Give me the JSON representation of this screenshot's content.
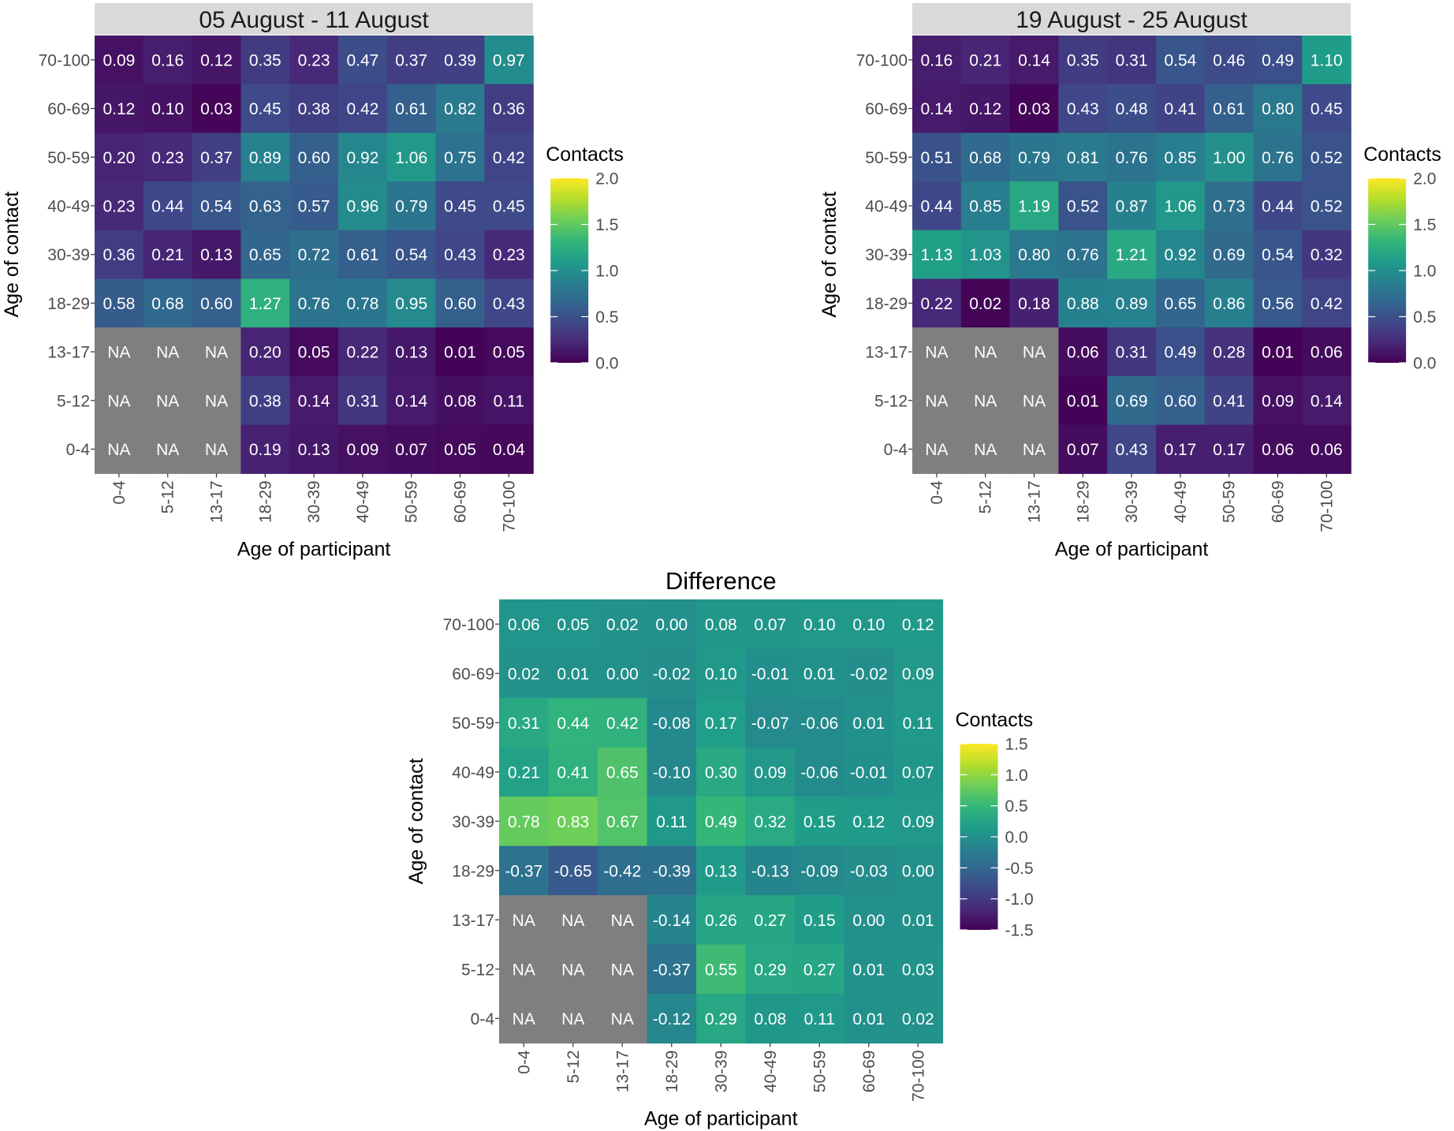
{
  "chart_data": [
    {
      "type": "heatmap",
      "title": "05 August - 11 August",
      "title_style": "strip",
      "xlabel": "Age of participant",
      "ylabel": "Age of contact",
      "x_categories": [
        "0-4",
        "5-12",
        "13-17",
        "18-29",
        "30-39",
        "40-49",
        "50-59",
        "60-69",
        "70-100"
      ],
      "y_categories": [
        "70-100",
        "60-69",
        "50-59",
        "40-49",
        "30-39",
        "18-29",
        "13-17",
        "5-12",
        "0-4"
      ],
      "values": [
        [
          0.09,
          0.16,
          0.12,
          0.35,
          0.23,
          0.47,
          0.37,
          0.39,
          0.97
        ],
        [
          0.12,
          0.1,
          0.03,
          0.45,
          0.38,
          0.42,
          0.61,
          0.82,
          0.36
        ],
        [
          0.2,
          0.23,
          0.37,
          0.89,
          0.6,
          0.92,
          1.06,
          0.75,
          0.42
        ],
        [
          0.23,
          0.44,
          0.54,
          0.63,
          0.57,
          0.96,
          0.79,
          0.45,
          0.45
        ],
        [
          0.36,
          0.21,
          0.13,
          0.65,
          0.72,
          0.61,
          0.54,
          0.43,
          0.23
        ],
        [
          0.58,
          0.68,
          0.6,
          1.27,
          0.76,
          0.78,
          0.95,
          0.6,
          0.43
        ],
        [
          null,
          null,
          null,
          0.2,
          0.05,
          0.22,
          0.13,
          0.01,
          0.05
        ],
        [
          null,
          null,
          null,
          0.38,
          0.14,
          0.31,
          0.14,
          0.08,
          0.11
        ],
        [
          null,
          null,
          null,
          0.19,
          0.13,
          0.09,
          0.07,
          0.05,
          0.04
        ]
      ],
      "na_label": "NA",
      "na_color": "#7f7f7f",
      "legend": {
        "title": "Contacts",
        "range": [
          0,
          2
        ],
        "ticks": [
          2.0,
          1.5,
          1.0,
          0.5,
          0.0
        ],
        "tick_labels": [
          "2.0",
          "1.5",
          "1.0",
          "0.5",
          "0.0"
        ],
        "colormap": "viridis",
        "placement": "right"
      }
    },
    {
      "type": "heatmap",
      "title": "19 August - 25 August",
      "title_style": "strip",
      "xlabel": "Age of participant",
      "ylabel": "Age of contact",
      "x_categories": [
        "0-4",
        "5-12",
        "13-17",
        "18-29",
        "30-39",
        "40-49",
        "50-59",
        "60-69",
        "70-100"
      ],
      "y_categories": [
        "70-100",
        "60-69",
        "50-59",
        "40-49",
        "30-39",
        "18-29",
        "13-17",
        "5-12",
        "0-4"
      ],
      "values": [
        [
          0.16,
          0.21,
          0.14,
          0.35,
          0.31,
          0.54,
          0.46,
          0.49,
          1.1
        ],
        [
          0.14,
          0.12,
          0.03,
          0.43,
          0.48,
          0.41,
          0.61,
          0.8,
          0.45
        ],
        [
          0.51,
          0.68,
          0.79,
          0.81,
          0.76,
          0.85,
          1.0,
          0.76,
          0.52
        ],
        [
          0.44,
          0.85,
          1.19,
          0.52,
          0.87,
          1.06,
          0.73,
          0.44,
          0.52
        ],
        [
          1.13,
          1.03,
          0.8,
          0.76,
          1.21,
          0.92,
          0.69,
          0.54,
          0.32
        ],
        [
          0.22,
          0.02,
          0.18,
          0.88,
          0.89,
          0.65,
          0.86,
          0.56,
          0.42
        ],
        [
          null,
          null,
          null,
          0.06,
          0.31,
          0.49,
          0.28,
          0.01,
          0.06
        ],
        [
          null,
          null,
          null,
          0.01,
          0.69,
          0.6,
          0.41,
          0.09,
          0.14
        ],
        [
          null,
          null,
          null,
          0.07,
          0.43,
          0.17,
          0.17,
          0.06,
          0.06
        ]
      ],
      "na_label": "NA",
      "na_color": "#7f7f7f",
      "legend": {
        "title": "Contacts",
        "range": [
          0,
          2
        ],
        "ticks": [
          2.0,
          1.5,
          1.0,
          0.5,
          0.0
        ],
        "tick_labels": [
          "2.0",
          "1.5",
          "1.0",
          "0.5",
          "0.0"
        ],
        "colormap": "viridis",
        "placement": "right"
      }
    },
    {
      "type": "heatmap",
      "title": "Difference",
      "title_style": "plain",
      "xlabel": "Age of participant",
      "ylabel": "Age of contact",
      "x_categories": [
        "0-4",
        "5-12",
        "13-17",
        "18-29",
        "30-39",
        "40-49",
        "50-59",
        "60-69",
        "70-100"
      ],
      "y_categories": [
        "70-100",
        "60-69",
        "50-59",
        "40-49",
        "30-39",
        "18-29",
        "13-17",
        "5-12",
        "0-4"
      ],
      "values": [
        [
          0.06,
          0.05,
          0.02,
          0.0,
          0.08,
          0.07,
          0.1,
          0.1,
          0.12
        ],
        [
          0.02,
          0.01,
          0.0,
          -0.02,
          0.1,
          -0.01,
          0.01,
          -0.02,
          0.09
        ],
        [
          0.31,
          0.44,
          0.42,
          -0.08,
          0.17,
          -0.07,
          -0.06,
          0.01,
          0.11
        ],
        [
          0.21,
          0.41,
          0.65,
          -0.1,
          0.3,
          0.09,
          -0.06,
          -0.01,
          0.07
        ],
        [
          0.78,
          0.83,
          0.67,
          0.11,
          0.49,
          0.32,
          0.15,
          0.12,
          0.09
        ],
        [
          -0.37,
          -0.65,
          -0.42,
          -0.39,
          0.13,
          -0.13,
          -0.09,
          -0.03,
          0.0
        ],
        [
          null,
          null,
          null,
          -0.14,
          0.26,
          0.27,
          0.15,
          0.0,
          0.01
        ],
        [
          null,
          null,
          null,
          -0.37,
          0.55,
          0.29,
          0.27,
          0.01,
          0.03
        ],
        [
          null,
          null,
          null,
          -0.12,
          0.29,
          0.08,
          0.11,
          0.01,
          0.02
        ]
      ],
      "na_label": "NA",
      "na_color": "#7f7f7f",
      "legend": {
        "title": "Contacts",
        "range": [
          -1.5,
          1.5
        ],
        "ticks": [
          1.5,
          1.0,
          0.5,
          0.0,
          -0.5,
          -1.0,
          -1.5
        ],
        "tick_labels": [
          "1.5",
          "1.0",
          "0.5",
          "0.0",
          "-0.5",
          "-1.0",
          "-1.5"
        ],
        "colormap": "viridis",
        "placement": "right"
      }
    }
  ]
}
